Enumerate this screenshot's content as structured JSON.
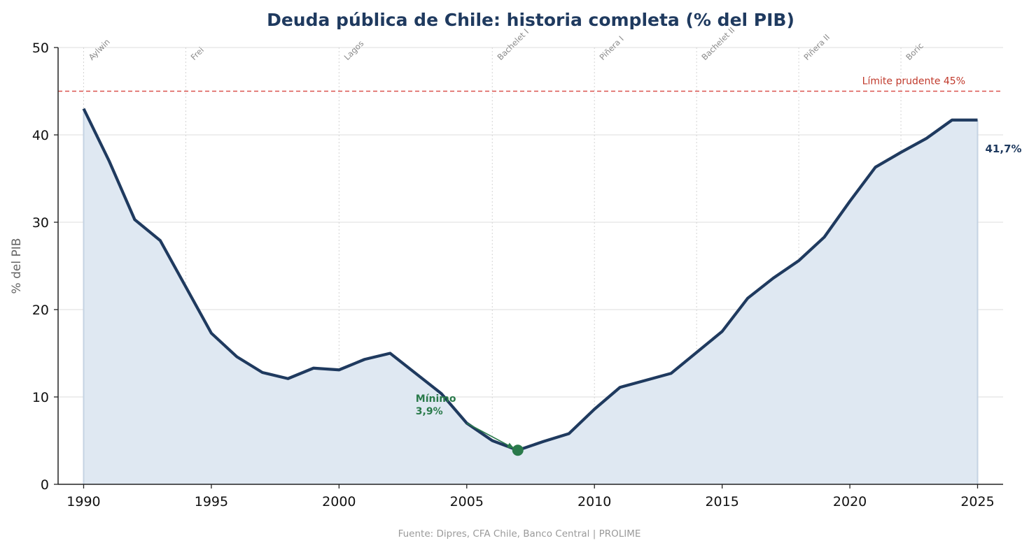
{
  "chart_data": {
    "type": "area",
    "title": "Deuda pública de Chile: historia completa (% del PIB)",
    "xlabel": "",
    "ylabel": "% del PIB",
    "xlim": [
      1989,
      2026
    ],
    "ylim": [
      0,
      50
    ],
    "x_ticks": [
      1990,
      1995,
      2000,
      2005,
      2010,
      2015,
      2020,
      2025
    ],
    "y_ticks": [
      0,
      10,
      20,
      30,
      40,
      50
    ],
    "grid": "horizontal",
    "series": [
      {
        "x": [
          1990,
          1991,
          1992,
          1993,
          1994,
          1995,
          1996,
          1997,
          1998,
          1999,
          2000,
          2001,
          2002,
          2003,
          2004,
          2005,
          2006,
          2007,
          2008,
          2009,
          2010,
          2011,
          2012,
          2013,
          2014,
          2015,
          2016,
          2017,
          2018,
          2019,
          2020,
          2021,
          2022,
          2023,
          2024,
          2025
        ],
        "values": [
          43.0,
          37.0,
          30.3,
          27.9,
          22.6,
          17.3,
          14.6,
          12.8,
          12.1,
          13.3,
          13.1,
          14.3,
          15.0,
          12.7,
          10.4,
          7.0,
          5.0,
          3.9,
          4.9,
          5.8,
          8.6,
          11.1,
          11.9,
          12.7,
          15.1,
          17.5,
          21.3,
          23.6,
          25.6,
          28.3,
          32.4,
          36.3,
          38.0,
          39.6,
          41.7,
          41.7
        ],
        "color": "#1f3a5f",
        "fill": "#dfe8f2"
      }
    ],
    "eras": [
      {
        "label": "Aylwin",
        "start": 1990
      },
      {
        "label": "Frei",
        "start": 1994
      },
      {
        "label": "Lagos",
        "start": 2000
      },
      {
        "label": "Bachelet I",
        "start": 2006
      },
      {
        "label": "Piñera I",
        "start": 2010
      },
      {
        "label": "Bachelet II",
        "start": 2014
      },
      {
        "label": "Piñera II",
        "start": 2018
      },
      {
        "label": "Boric",
        "start": 2022
      }
    ],
    "reference_line": {
      "value": 45,
      "label": "Límite prudente 45%",
      "color": "#d9534f"
    },
    "annotations": {
      "minimum": {
        "x": 2007,
        "y": 3.9,
        "line1": "Mínimo",
        "line2": "3,9%",
        "text_x": 2003,
        "text_y": 8.5,
        "color": "#2a7a4b"
      },
      "end_label": {
        "x": 2025,
        "y": 41.7,
        "text": "41,7%"
      }
    },
    "source": "Fuente: Dipres, CFA Chile, Banco Central  |  PROLIME"
  }
}
